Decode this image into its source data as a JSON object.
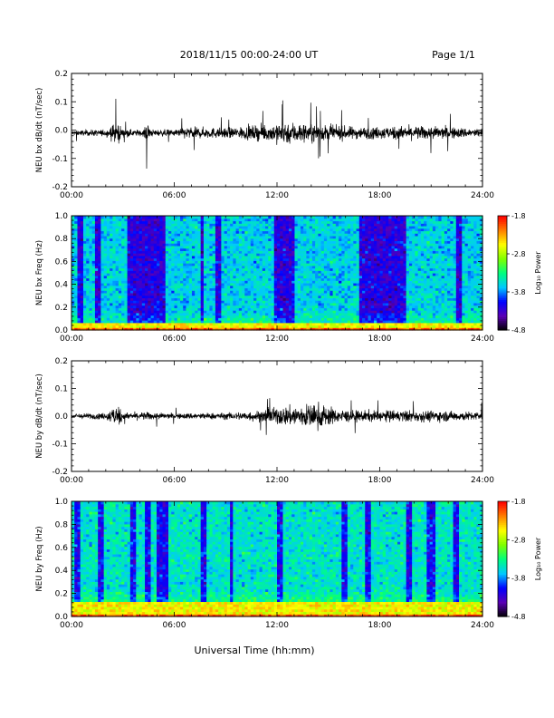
{
  "header": {
    "date_range": "2018/11/15  00:00-24:00 UT",
    "page": "Page 1/1"
  },
  "xlabel": "Universal Time (hh:mm)",
  "x_ticks": [
    "00:00",
    "06:00",
    "12:00",
    "18:00",
    "24:00"
  ],
  "colorbar": {
    "label": "Log₁₀ Power",
    "ticks": [
      "-1.8",
      "-2.8",
      "-3.8",
      "-4.8"
    ],
    "range": [
      -4.8,
      -1.8
    ],
    "colors": [
      "#000000",
      "#5a00b4",
      "#0000ff",
      "#00c8ff",
      "#00ff7f",
      "#7fff00",
      "#ffff00",
      "#ff7f00",
      "#ff0000"
    ]
  },
  "chart_data": [
    {
      "type": "line",
      "ylabel": "NEU bx dB/dt (nT/sec)",
      "xlim": [
        0,
        24
      ],
      "ylim": [
        -0.2,
        0.2
      ],
      "y_ticks": [
        "0.2",
        "0.1",
        "0.0",
        "-0.1",
        "-0.2"
      ],
      "x_ticks": [
        "00:00",
        "06:00",
        "12:00",
        "18:00",
        "24:00"
      ],
      "baseline": -0.01,
      "envelope": [
        [
          0,
          0.015
        ],
        [
          2,
          0.02
        ],
        [
          2.7,
          0.07
        ],
        [
          3,
          0.02
        ],
        [
          4.2,
          0.02
        ],
        [
          4.4,
          0.075
        ],
        [
          4.6,
          0.02
        ],
        [
          6,
          0.02
        ],
        [
          6.5,
          0.035
        ],
        [
          9,
          0.03
        ],
        [
          11,
          0.045
        ],
        [
          12.5,
          0.07
        ],
        [
          13.5,
          0.06
        ],
        [
          15,
          0.045
        ],
        [
          17,
          0.035
        ],
        [
          19,
          0.04
        ],
        [
          21,
          0.04
        ],
        [
          24,
          0.025
        ]
      ]
    },
    {
      "type": "heatmap",
      "ylabel": "NEU bx Freq (Hz)",
      "xlim": [
        0,
        24
      ],
      "ylim": [
        0,
        1.0
      ],
      "y_ticks": [
        "1.0",
        "0.8",
        "0.6",
        "0.4",
        "0.2",
        "0.0"
      ],
      "x_ticks": [
        "00:00",
        "06:00",
        "12:00",
        "18:00",
        "24:00"
      ],
      "zlim": [
        -4.8,
        -1.8
      ],
      "background": -3.6,
      "low_freq_band": [
        0.0,
        0.06
      ],
      "dark_bands": [
        [
          0.3,
          0.7
        ],
        [
          1.4,
          1.7
        ],
        [
          3.3,
          5.5
        ],
        [
          7.5,
          7.8
        ],
        [
          8.4,
          8.7
        ],
        [
          11.8,
          13.0
        ],
        [
          16.8,
          19.6
        ],
        [
          22.5,
          22.8
        ]
      ]
    },
    {
      "type": "line",
      "ylabel": "NEU by dB/dt (nT/sec)",
      "xlim": [
        0,
        24
      ],
      "ylim": [
        -0.2,
        0.2
      ],
      "y_ticks": [
        "0.2",
        "0.1",
        "0.0",
        "-0.1",
        "-0.2"
      ],
      "x_ticks": [
        "00:00",
        "06:00",
        "12:00",
        "18:00",
        "24:00"
      ],
      "baseline": 0.0,
      "envelope": [
        [
          0,
          0.015
        ],
        [
          2,
          0.02
        ],
        [
          2.7,
          0.075
        ],
        [
          3,
          0.02
        ],
        [
          4.4,
          0.025
        ],
        [
          6,
          0.015
        ],
        [
          7,
          0.02
        ],
        [
          9,
          0.02
        ],
        [
          11,
          0.035
        ],
        [
          12.5,
          0.06
        ],
        [
          14.5,
          0.08
        ],
        [
          15.5,
          0.04
        ],
        [
          17,
          0.035
        ],
        [
          19,
          0.035
        ],
        [
          21,
          0.035
        ],
        [
          24,
          0.025
        ]
      ]
    },
    {
      "type": "heatmap",
      "ylabel": "NEU by Freq (Hz)",
      "xlim": [
        0,
        24
      ],
      "ylim": [
        0,
        1.0
      ],
      "y_ticks": [
        "1.0",
        "0.8",
        "0.6",
        "0.4",
        "0.2",
        "0.0"
      ],
      "x_ticks": [
        "00:00",
        "06:00",
        "12:00",
        "18:00",
        "24:00"
      ],
      "zlim": [
        -4.8,
        -1.8
      ],
      "background": -3.5,
      "low_freq_band": [
        0.0,
        0.12
      ],
      "dark_bands": [
        [
          0.2,
          0.5
        ],
        [
          1.6,
          1.9
        ],
        [
          3.4,
          3.8
        ],
        [
          4.3,
          4.6
        ],
        [
          5.0,
          5.6
        ],
        [
          7.6,
          7.9
        ],
        [
          9.2,
          9.4
        ],
        [
          12.0,
          12.3
        ],
        [
          15.8,
          16.1
        ],
        [
          17.1,
          17.4
        ],
        [
          19.6,
          19.9
        ],
        [
          20.8,
          21.2
        ],
        [
          22.3,
          22.6
        ]
      ]
    }
  ]
}
